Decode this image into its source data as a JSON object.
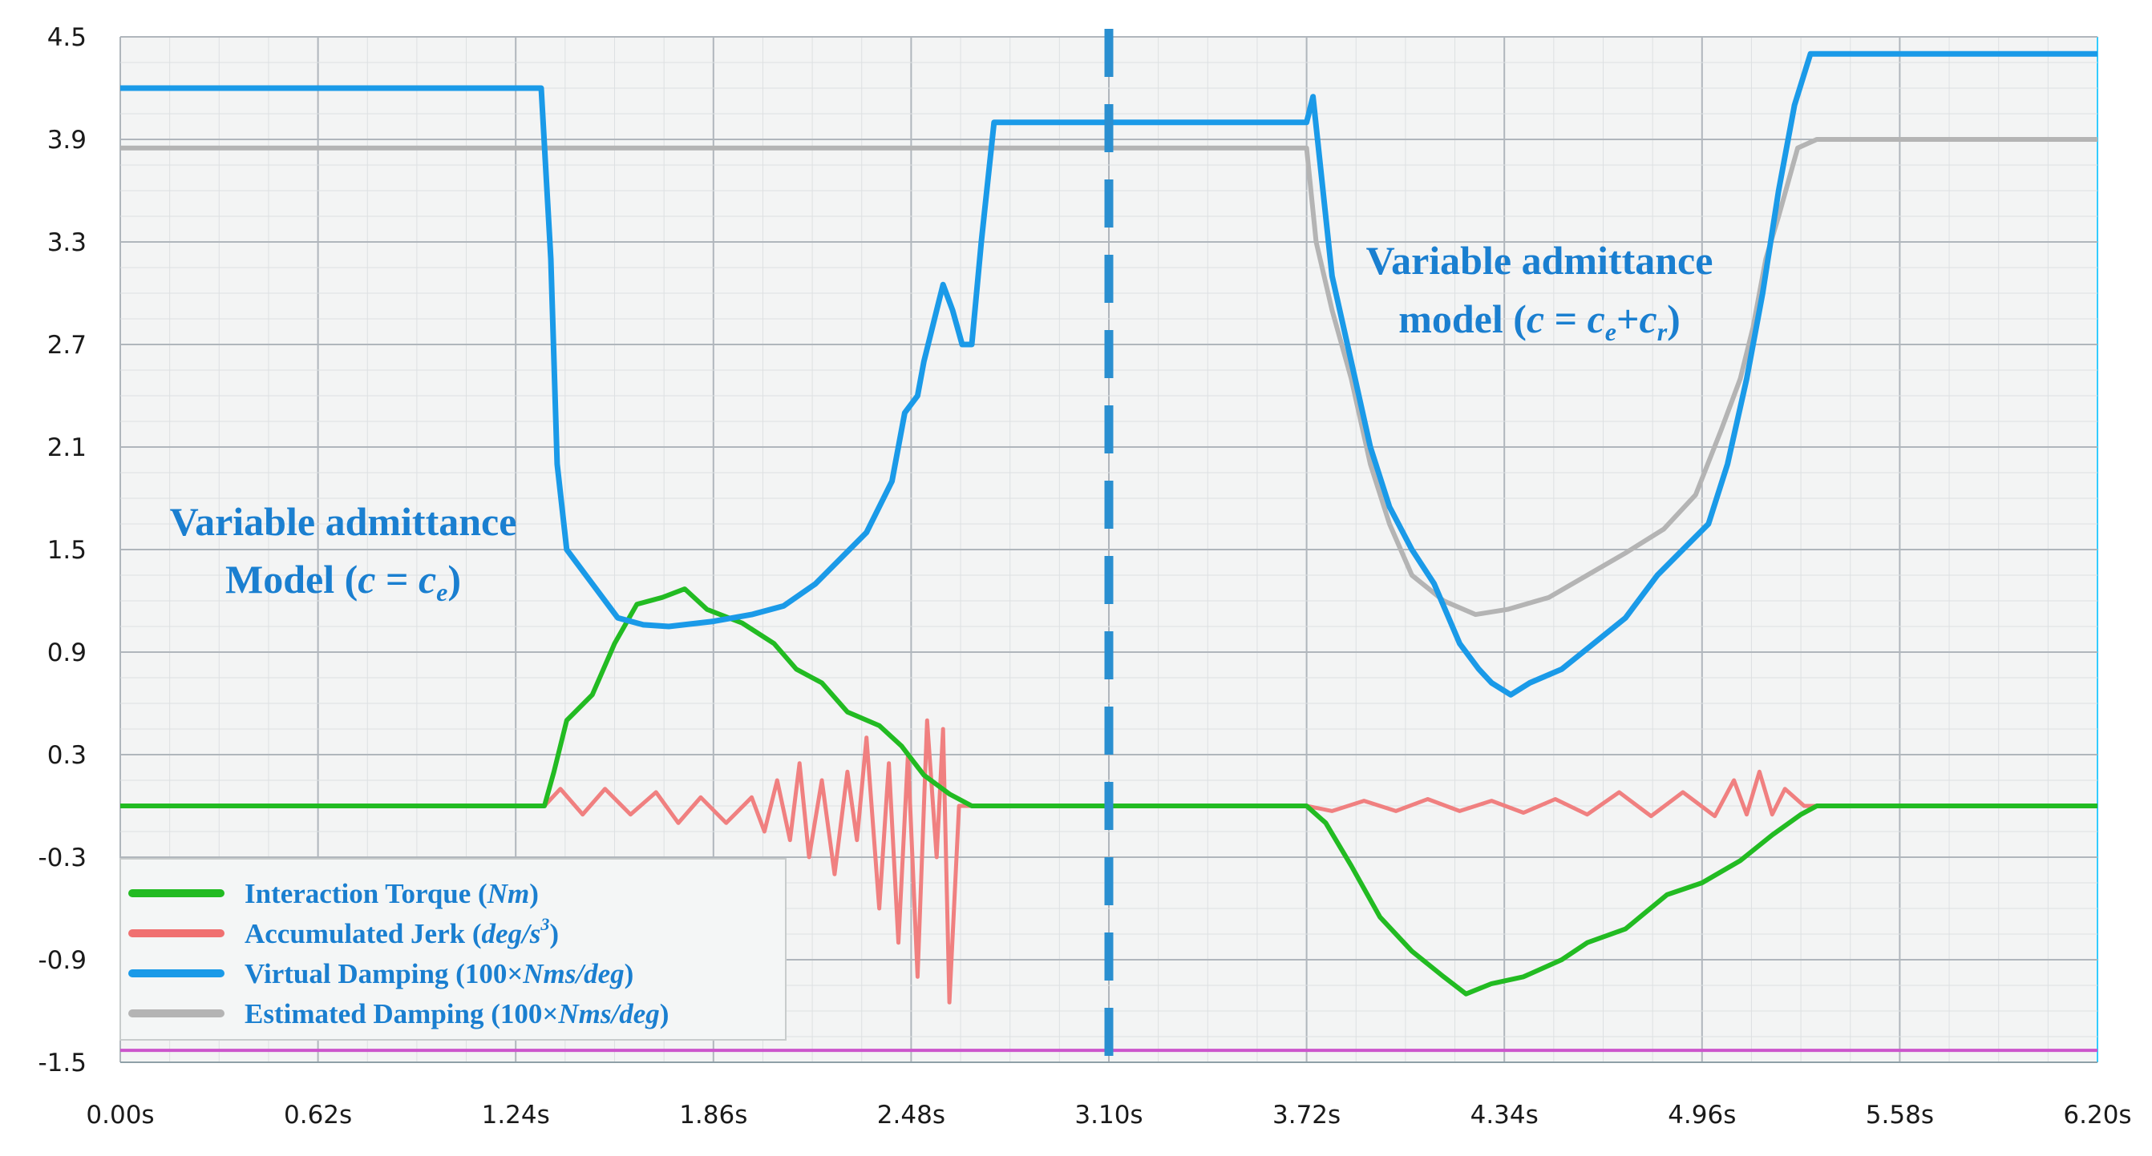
{
  "chart_data": {
    "type": "line",
    "xlim": [
      0,
      6.2
    ],
    "ylim": [
      -1.5,
      4.5
    ],
    "x_ticks": [
      "0.00s",
      "0.62s",
      "1.24s",
      "1.86s",
      "2.48s",
      "3.10s",
      "3.72s",
      "4.34s",
      "4.96s",
      "5.58s",
      "6.20s"
    ],
    "y_ticks": [
      "4.5",
      "3.9",
      "3.3",
      "2.7",
      "2.1",
      "1.5",
      "0.9",
      "0.3",
      "-0.3",
      "-0.9",
      "-1.5"
    ],
    "grid": true,
    "legend_position": "bottom-left",
    "divider_x": 3.1,
    "baseline_y": -1.43,
    "colors": {
      "torque": "#22bb22",
      "jerk": "#f08080",
      "damping": "#1a9ae8",
      "estimated": "#b4b4b4",
      "divider": "#2a8fd0",
      "baseline": "#cc55cc",
      "annotation": "#1a7fd0",
      "grid": "#b0b6bc",
      "background": "#f3f4f4"
    },
    "annotations": {
      "left": {
        "line1": "Variable  admittance",
        "line2_pre": "Model (",
        "var_c": "c",
        "eq": " = ",
        "var_ce": "c",
        "sub_e": "e",
        "close": ")"
      },
      "right": {
        "line1": "Variable  admittance",
        "line2_pre": "model (",
        "var_c": "c",
        "eq": " = ",
        "var_ce": "c",
        "sub_e": "e",
        "plus": "+",
        "var_cr": "c",
        "sub_r": "r",
        "close": ")"
      }
    },
    "series": [
      {
        "key": "torque",
        "legend_main": "Interaction Torque (",
        "legend_unit": "Nm",
        "legend_end": ")",
        "points": [
          [
            0,
            0.0
          ],
          [
            1.33,
            0.0
          ],
          [
            1.36,
            0.2
          ],
          [
            1.4,
            0.5
          ],
          [
            1.48,
            0.65
          ],
          [
            1.55,
            0.95
          ],
          [
            1.62,
            1.18
          ],
          [
            1.7,
            1.22
          ],
          [
            1.77,
            1.27
          ],
          [
            1.84,
            1.15
          ],
          [
            1.95,
            1.07
          ],
          [
            2.05,
            0.95
          ],
          [
            2.12,
            0.8
          ],
          [
            2.2,
            0.72
          ],
          [
            2.28,
            0.55
          ],
          [
            2.38,
            0.47
          ],
          [
            2.45,
            0.35
          ],
          [
            2.52,
            0.18
          ],
          [
            2.6,
            0.07
          ],
          [
            2.67,
            0.0
          ],
          [
            3.72,
            0.0
          ],
          [
            3.78,
            -0.1
          ],
          [
            3.86,
            -0.35
          ],
          [
            3.95,
            -0.65
          ],
          [
            4.05,
            -0.85
          ],
          [
            4.15,
            -1.0
          ],
          [
            4.22,
            -1.1
          ],
          [
            4.3,
            -1.04
          ],
          [
            4.4,
            -1.0
          ],
          [
            4.52,
            -0.9
          ],
          [
            4.6,
            -0.8
          ],
          [
            4.72,
            -0.72
          ],
          [
            4.85,
            -0.52
          ],
          [
            4.96,
            -0.45
          ],
          [
            5.08,
            -0.32
          ],
          [
            5.18,
            -0.17
          ],
          [
            5.27,
            -0.05
          ],
          [
            5.32,
            0.0
          ],
          [
            6.2,
            0.0
          ]
        ]
      },
      {
        "key": "jerk",
        "legend_main": "Accumulated Jerk (",
        "legend_unit": "deg/s",
        "legend_sup": "3",
        "legend_end": ")",
        "points": [
          [
            0,
            0.0
          ],
          [
            1.33,
            0.0
          ],
          [
            1.38,
            0.1
          ],
          [
            1.45,
            -0.05
          ],
          [
            1.52,
            0.1
          ],
          [
            1.6,
            -0.05
          ],
          [
            1.68,
            0.08
          ],
          [
            1.75,
            -0.1
          ],
          [
            1.82,
            0.05
          ],
          [
            1.9,
            -0.1
          ],
          [
            1.98,
            0.05
          ],
          [
            2.02,
            -0.15
          ],
          [
            2.06,
            0.15
          ],
          [
            2.1,
            -0.2
          ],
          [
            2.13,
            0.25
          ],
          [
            2.16,
            -0.3
          ],
          [
            2.2,
            0.15
          ],
          [
            2.24,
            -0.4
          ],
          [
            2.28,
            0.2
          ],
          [
            2.31,
            -0.2
          ],
          [
            2.34,
            0.4
          ],
          [
            2.38,
            -0.6
          ],
          [
            2.41,
            0.25
          ],
          [
            2.44,
            -0.8
          ],
          [
            2.47,
            0.3
          ],
          [
            2.5,
            -1.0
          ],
          [
            2.53,
            0.5
          ],
          [
            2.56,
            -0.3
          ],
          [
            2.58,
            0.45
          ],
          [
            2.6,
            -1.15
          ],
          [
            2.63,
            0.0
          ],
          [
            2.67,
            0.0
          ],
          [
            3.72,
            0.0
          ],
          [
            3.8,
            -0.03
          ],
          [
            3.9,
            0.03
          ],
          [
            4.0,
            -0.03
          ],
          [
            4.1,
            0.04
          ],
          [
            4.2,
            -0.03
          ],
          [
            4.3,
            0.03
          ],
          [
            4.4,
            -0.04
          ],
          [
            4.5,
            0.04
          ],
          [
            4.6,
            -0.05
          ],
          [
            4.7,
            0.08
          ],
          [
            4.8,
            -0.06
          ],
          [
            4.9,
            0.08
          ],
          [
            5.0,
            -0.06
          ],
          [
            5.06,
            0.15
          ],
          [
            5.1,
            -0.05
          ],
          [
            5.14,
            0.2
          ],
          [
            5.18,
            -0.05
          ],
          [
            5.22,
            0.1
          ],
          [
            5.28,
            0.0
          ],
          [
            6.2,
            0.0
          ]
        ]
      },
      {
        "key": "damping",
        "legend_main": "Virtual Damping (100×",
        "legend_unit": "Nms/deg",
        "legend_end": ")",
        "points": [
          [
            0,
            4.2
          ],
          [
            1.32,
            4.2
          ],
          [
            1.35,
            3.2
          ],
          [
            1.37,
            2.0
          ],
          [
            1.4,
            1.5
          ],
          [
            1.48,
            1.3
          ],
          [
            1.56,
            1.1
          ],
          [
            1.64,
            1.06
          ],
          [
            1.72,
            1.05
          ],
          [
            1.86,
            1.08
          ],
          [
            1.98,
            1.12
          ],
          [
            2.08,
            1.17
          ],
          [
            2.18,
            1.3
          ],
          [
            2.26,
            1.45
          ],
          [
            2.34,
            1.6
          ],
          [
            2.42,
            1.9
          ],
          [
            2.46,
            2.3
          ],
          [
            2.5,
            2.4
          ],
          [
            2.52,
            2.6
          ],
          [
            2.56,
            2.9
          ],
          [
            2.58,
            3.05
          ],
          [
            2.61,
            2.9
          ],
          [
            2.64,
            2.7
          ],
          [
            2.67,
            2.7
          ],
          [
            2.7,
            3.3
          ],
          [
            2.74,
            4.0
          ],
          [
            3.72,
            4.0
          ],
          [
            3.74,
            4.15
          ],
          [
            3.76,
            3.8
          ],
          [
            3.8,
            3.1
          ],
          [
            3.86,
            2.6
          ],
          [
            3.92,
            2.1
          ],
          [
            3.98,
            1.75
          ],
          [
            4.05,
            1.5
          ],
          [
            4.12,
            1.3
          ],
          [
            4.2,
            0.95
          ],
          [
            4.26,
            0.8
          ],
          [
            4.3,
            0.72
          ],
          [
            4.36,
            0.65
          ],
          [
            4.42,
            0.72
          ],
          [
            4.52,
            0.8
          ],
          [
            4.62,
            0.95
          ],
          [
            4.72,
            1.1
          ],
          [
            4.82,
            1.35
          ],
          [
            4.9,
            1.5
          ],
          [
            4.98,
            1.65
          ],
          [
            5.04,
            2.0
          ],
          [
            5.1,
            2.5
          ],
          [
            5.15,
            3.0
          ],
          [
            5.2,
            3.6
          ],
          [
            5.25,
            4.1
          ],
          [
            5.3,
            4.4
          ],
          [
            6.2,
            4.4
          ]
        ]
      },
      {
        "key": "estimated",
        "legend_main": "Estimated Damping (100×",
        "legend_unit": "Nms/deg",
        "legend_end": ")",
        "points": [
          [
            0,
            3.85
          ],
          [
            1.32,
            3.85
          ],
          [
            3.72,
            3.85
          ],
          [
            3.75,
            3.3
          ],
          [
            3.8,
            2.9
          ],
          [
            3.86,
            2.5
          ],
          [
            3.92,
            2.0
          ],
          [
            3.98,
            1.65
          ],
          [
            4.05,
            1.35
          ],
          [
            4.15,
            1.2
          ],
          [
            4.25,
            1.12
          ],
          [
            4.35,
            1.15
          ],
          [
            4.48,
            1.22
          ],
          [
            4.6,
            1.35
          ],
          [
            4.72,
            1.48
          ],
          [
            4.84,
            1.62
          ],
          [
            4.94,
            1.82
          ],
          [
            5.02,
            2.2
          ],
          [
            5.08,
            2.5
          ],
          [
            5.12,
            2.8
          ],
          [
            5.16,
            3.2
          ],
          [
            5.2,
            3.45
          ],
          [
            5.26,
            3.85
          ],
          [
            5.32,
            3.9
          ],
          [
            6.2,
            3.9
          ]
        ]
      }
    ]
  }
}
